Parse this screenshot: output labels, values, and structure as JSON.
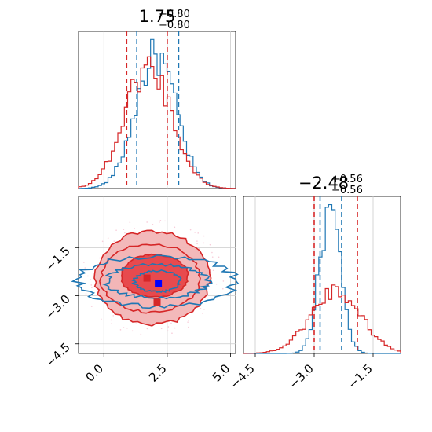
{
  "chart_data": {
    "type": "corner",
    "colors": {
      "red": "#d62728",
      "blue": "#1f77b4",
      "red_fill": "#e64548",
      "light_fill": "#f2b5b6",
      "grid": "#cccccc"
    },
    "panels": [
      {
        "id": "hist-x",
        "type": "histogram",
        "title": {
          "median": "1.75",
          "plus": "+0.80",
          "minus": "−0.80"
        },
        "xlim": [
          -1.0,
          5.2
        ],
        "x_ticks": [
          0.0,
          2.5,
          5.0
        ],
        "quantile_lines": {
          "red": [
            0.9,
            2.5
          ],
          "blue": [
            1.3,
            2.95
          ]
        },
        "series": [
          {
            "name": "",
            "color": "#1f77b4",
            "center": 2.05,
            "sigma": 0.8,
            "peak": 0.84
          },
          {
            "name": "",
            "color": "#d62728",
            "center": 1.75,
            "sigma": 0.92,
            "peak": 0.78
          }
        ]
      },
      {
        "id": "joint",
        "type": "contour",
        "xlim": [
          -1.0,
          5.2
        ],
        "ylim": [
          -4.8,
          0.1
        ],
        "x_ticks": [
          0.0,
          2.5,
          5.0
        ],
        "x_tick_labels": [
          "0.0",
          "2.5",
          "5.0"
        ],
        "y_ticks": [
          -4.5,
          -3.0,
          -1.5
        ],
        "y_tick_labels": [
          "−4.5",
          "−3.0",
          "−1.5"
        ],
        "red_contours": [
          {
            "cx": 2.0,
            "cy": -2.38,
            "rx": 1.33,
            "ry": 0.66,
            "fill": "#e64548"
          },
          {
            "cx": 1.85,
            "cy": -2.45,
            "rx": 1.95,
            "ry": 1.06,
            "fill": "#f2b5b6"
          },
          {
            "cx": 1.9,
            "cy": -2.45,
            "rx": 2.25,
            "ry": 1.46,
            "fill": "#f2b5b6"
          }
        ],
        "blue_contours": [
          {
            "cx": 2.1,
            "cy": -2.55,
            "rx": 0.9,
            "ry": 0.33
          },
          {
            "cx": 2.1,
            "cy": -2.55,
            "rx": 2.0,
            "ry": 0.52
          },
          {
            "cx": 2.1,
            "cy": -2.55,
            "rx": 3.1,
            "ry": 0.78
          }
        ],
        "markers": [
          {
            "color": "#d62728",
            "x": 1.7,
            "y": -2.45
          },
          {
            "color": "#0000ff",
            "x": 2.15,
            "y": -2.62
          },
          {
            "color": "#d62728",
            "x": 2.1,
            "y": -3.2
          }
        ]
      },
      {
        "id": "hist-y",
        "type": "histogram",
        "title": {
          "median": "−2.48",
          "plus": "+0.56",
          "minus": "−0.56"
        },
        "xlim": [
          -4.8,
          -0.8
        ],
        "x_ticks": [
          -4.5,
          -3.0,
          -1.5
        ],
        "x_tick_labels": [
          "−4.5",
          "−3.0",
          "−1.5"
        ],
        "quantile_lines": {
          "red": [
            -3.0,
            -1.9
          ],
          "blue": [
            -2.85,
            -2.3
          ]
        },
        "series": [
          {
            "name": "",
            "color": "#1f77b4",
            "center": -2.6,
            "sigma": 0.27,
            "peak": 0.9
          },
          {
            "name": "",
            "color": "#d62728",
            "center": -2.45,
            "sigma": 0.64,
            "peak": 0.4
          }
        ]
      }
    ]
  }
}
